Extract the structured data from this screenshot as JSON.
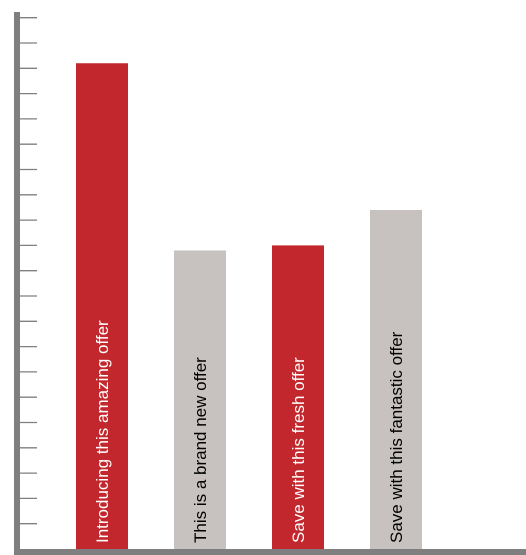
{
  "chart_data": {
    "type": "bar",
    "title": "",
    "xlabel": "",
    "ylabel": "",
    "categories": [
      "Introducing this amazing offer",
      "This is a brand new offer",
      "Save with this fresh offer",
      "Save with this fantastic offer"
    ],
    "values": [
      96,
      59,
      60,
      67
    ],
    "ylim": [
      0,
      107
    ],
    "minor_tick_step": 5,
    "y_tick_labels_shown": false,
    "grid": false,
    "legend": "none",
    "bar_colors": [
      "#c1272d",
      "#c7c2c0",
      "#c1272d",
      "#c7c2c0"
    ],
    "label_colors": [
      "#ffffff",
      "#000000",
      "#ffffff",
      "#000000"
    ],
    "axis_color": "#7f7f7f"
  }
}
